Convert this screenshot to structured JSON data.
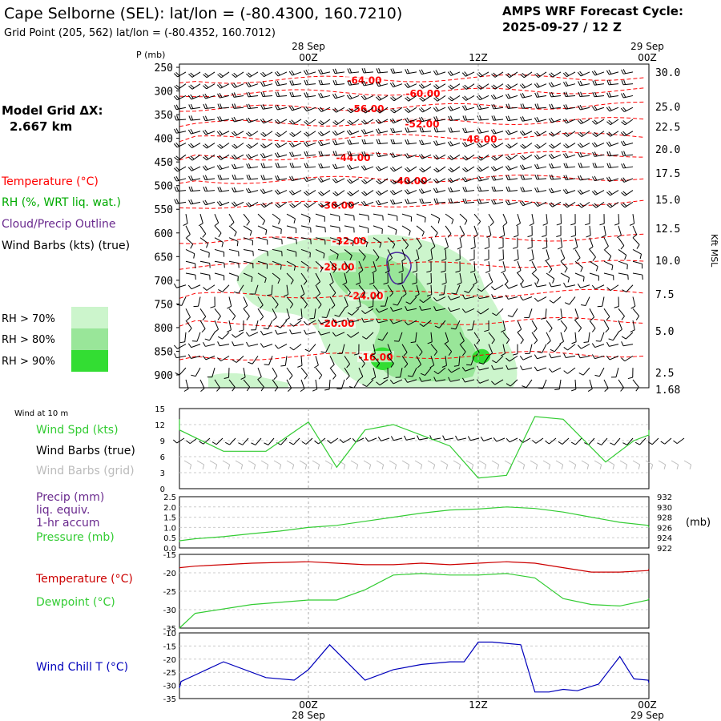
{
  "header": {
    "title": "Cape Selborne (SEL):  lat/lon = (-80.4300, 160.7210)",
    "grid_point": "Grid Point (205, 562) lat/lon = (-80.4352, 160.7012)",
    "cycle_line1": "AMPS WRF Forecast Cycle:",
    "cycle_line2": "2025-09-27 / 12  Z",
    "model_grid_label": "Model Grid ΔX:",
    "model_grid_value": "2.667 km"
  },
  "time_axis": {
    "top_dates": [
      "28 Sep",
      "29 Sep"
    ],
    "labels": [
      "00Z",
      "12Z",
      "00Z"
    ],
    "bottom_dates": [
      "28 Sep",
      "29 Sep"
    ]
  },
  "legend": {
    "temperature": "Temperature (°C)",
    "rh": "RH (%, WRT liq. wat.)",
    "cloud": "Cloud/Precip Outline",
    "barbs": "Wind Barbs (kts) (true)",
    "rh70": "RH > 70%",
    "rh80": "RH > 80%",
    "rh90": "RH > 90%"
  },
  "colors": {
    "temperature": "#ff0000",
    "rh_text": "#00aa00",
    "cloud": "#6a2a8e",
    "rh70": "#ccf5cc",
    "rh80": "#99e699",
    "rh90": "#33dd33",
    "wind_spd": "#33cc33",
    "grid_barbs": "#bbbbbb",
    "dewpoint": "#33cc33",
    "wind_chill": "#0000bb"
  },
  "chart_data": [
    {
      "type": "heatmap",
      "name": "cross-section",
      "p_label": "P (mb)",
      "p_ticks": [
        250,
        300,
        350,
        400,
        450,
        500,
        550,
        600,
        650,
        700,
        750,
        800,
        850,
        900
      ],
      "kft_label": "Kft MSL",
      "kft_ticks": [
        "30.0",
        "25.0",
        "22.5",
        "20.0",
        "17.5",
        "15.0",
        "12.5",
        "10.0",
        "7.5",
        "5.0",
        "2.5",
        "1.68"
      ],
      "isotherms": [
        {
          "label": "-64.00",
          "p": 278
        },
        {
          "label": "-60.00",
          "p": 306
        },
        {
          "label": "-56.00",
          "p": 338
        },
        {
          "label": "-52.00",
          "p": 370
        },
        {
          "label": "-48.00",
          "p": 402
        },
        {
          "label": "-44.00",
          "p": 441
        },
        {
          "label": "-40.00",
          "p": 490
        },
        {
          "label": "-36.00",
          "p": 542
        },
        {
          "label": "-32.00",
          "p": 617
        },
        {
          "label": "-28.00",
          "p": 672
        },
        {
          "label": "-24.00",
          "p": 733
        },
        {
          "label": "-20.00",
          "p": 792
        },
        {
          "label": "-16.00",
          "p": 863
        }
      ]
    },
    {
      "type": "line",
      "name": "wind",
      "title": "Wind at 10 m",
      "series_labels": [
        "Wind Spd (kts)",
        "Wind Barbs (true)",
        "Wind Barbs (grid)"
      ],
      "yticks": [
        "0",
        "3",
        "6",
        "9",
        "12",
        "15"
      ],
      "ylim": [
        0,
        15
      ],
      "x": [
        -12,
        -10,
        -6,
        -3,
        0,
        2,
        4,
        6,
        8,
        10,
        12,
        14,
        16,
        18,
        21,
        23,
        24,
        25,
        26
      ],
      "values": [
        13,
        11,
        7,
        7,
        12.5,
        4,
        11,
        12,
        10,
        8,
        2,
        2.5,
        13.5,
        13,
        5,
        9,
        10,
        10,
        11
      ]
    },
    {
      "type": "line",
      "name": "precip-pressure",
      "series_labels": [
        "Precip (mm)",
        "liq. equiv.",
        "1-hr accum",
        "Pressure (mb)"
      ],
      "yticks_left": [
        "0.0",
        "0.5",
        "1.0",
        "1.5",
        "2.0",
        "2.5"
      ],
      "yticks_right": [
        "922",
        "924",
        "926",
        "928",
        "930",
        "932"
      ],
      "unit_right": "(mb)",
      "ylim": [
        922,
        932
      ],
      "x": [
        -12,
        -10,
        -8,
        -6,
        -4,
        -2,
        0,
        2,
        4,
        6,
        8,
        10,
        12,
        14,
        16,
        18,
        20,
        22,
        24,
        26
      ],
      "values": [
        923.2,
        923.4,
        923.8,
        924.2,
        924.8,
        925.3,
        926.0,
        926.4,
        927.2,
        928.0,
        928.8,
        929.4,
        929.6,
        930.0,
        929.7,
        929.0,
        928.0,
        927.0,
        926.4,
        926.0
      ]
    },
    {
      "type": "line",
      "name": "temperature-dewpoint",
      "series_labels": [
        "Temperature (°C)",
        "Dewpoint (°C)"
      ],
      "yticks": [
        "-35",
        "-30",
        "-25",
        "-20",
        "-15"
      ],
      "ylim": [
        -35,
        -10
      ],
      "x": [
        -12,
        -8,
        -4,
        0,
        2,
        4,
        6,
        8,
        10,
        12,
        14,
        16,
        18,
        20,
        22,
        24,
        26
      ],
      "series": [
        {
          "name": "Temperature (°C)",
          "values": [
            -14.5,
            -14,
            -13,
            -12.5,
            -13,
            -13.5,
            -13.5,
            -13,
            -13.5,
            -13,
            -12.5,
            -13,
            -14.5,
            -16,
            -16,
            -15.5,
            -15
          ]
        },
        {
          "name": "Dewpoint (°C)",
          "values": [
            -35,
            -30,
            -27,
            -25.5,
            -25.5,
            -22,
            -17,
            -16.5,
            -17,
            -17,
            -16.5,
            -18,
            -25,
            -27,
            -27.5,
            -25.5,
            -25
          ]
        }
      ]
    },
    {
      "type": "line",
      "name": "wind-chill",
      "series_labels": [
        "Wind Chill T (°C)"
      ],
      "yticks": [
        "-35",
        "-30",
        "-25",
        "-20",
        "-15",
        "-10"
      ],
      "ylim": [
        -35,
        -10
      ],
      "x": [
        -12,
        -9,
        -6,
        -3,
        -1,
        0,
        1.5,
        4,
        6,
        8,
        10,
        11,
        12,
        13,
        15,
        16,
        17,
        18,
        19,
        20.5,
        22,
        23,
        24,
        26
      ],
      "values": [
        -31,
        -28.5,
        -21,
        -27,
        -28,
        -24,
        -14.5,
        -28,
        -24,
        -22,
        -21,
        -21,
        -13.5,
        -13.5,
        -14.5,
        -32.5,
        -32.5,
        -31.5,
        -32,
        -29.5,
        -19,
        -27.5,
        -28,
        -29
      ]
    }
  ]
}
